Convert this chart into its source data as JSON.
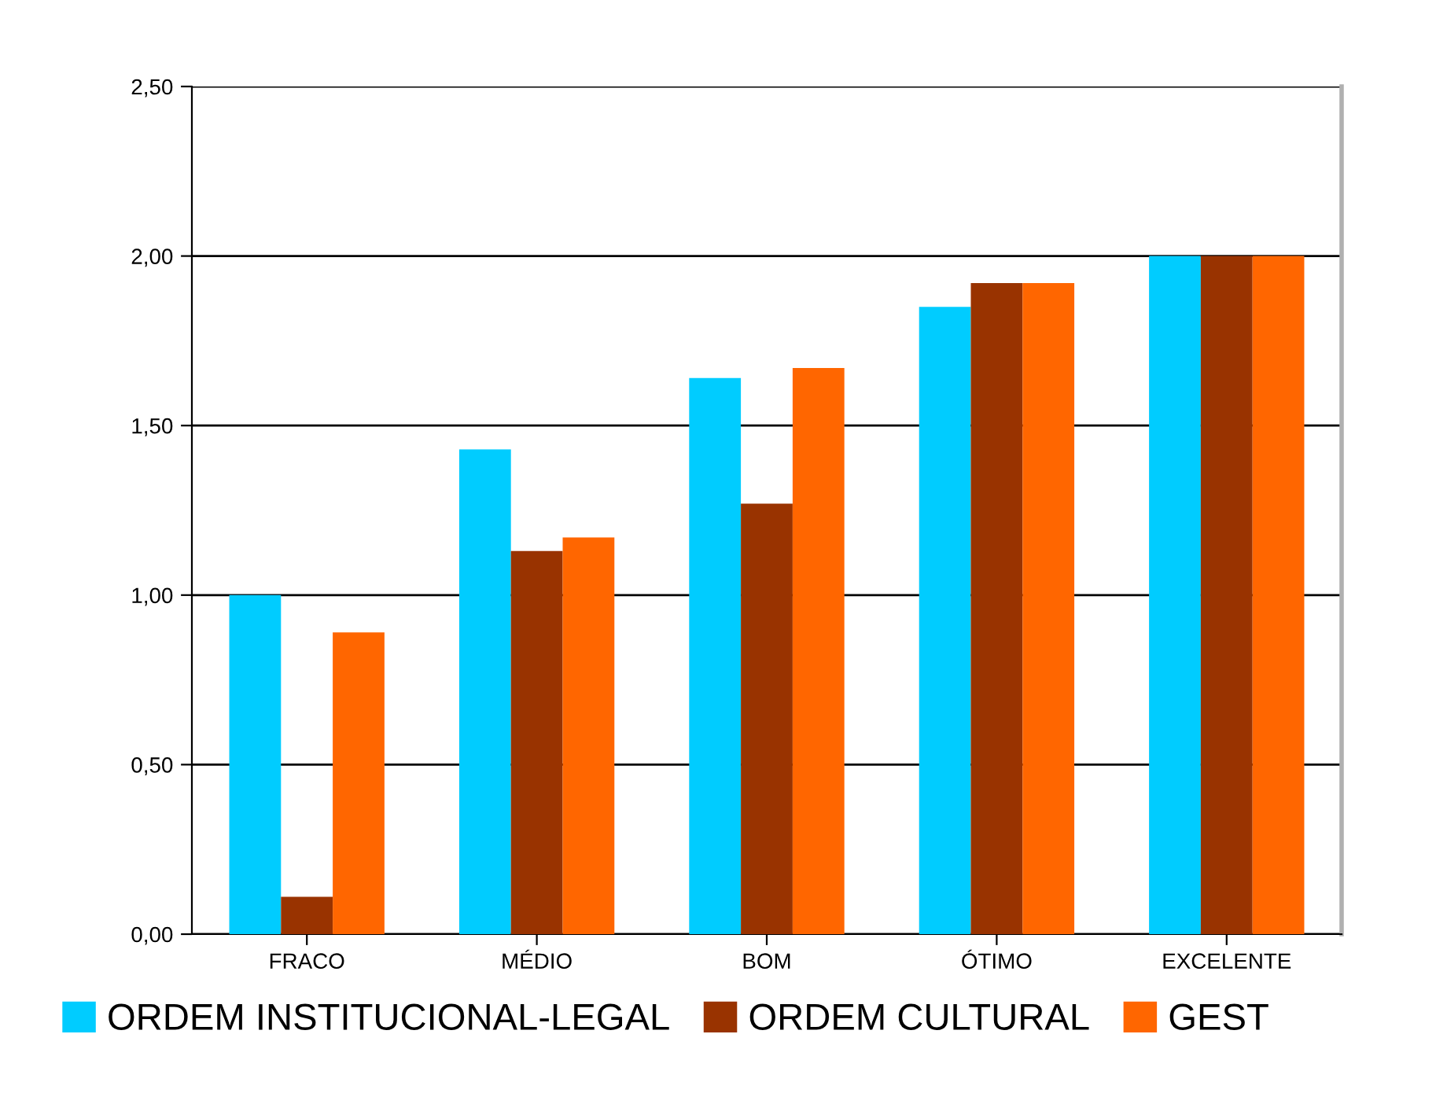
{
  "chart_data": {
    "type": "bar",
    "categories": [
      "FRACO",
      "MÉDIO",
      "BOM",
      "ÓTIMO",
      "EXCELENTE"
    ],
    "series": [
      {
        "name": "ORDEM INSTITUCIONAL-LEGAL",
        "color": "#00ccff",
        "values": [
          1.0,
          1.43,
          1.64,
          1.85,
          2.0
        ]
      },
      {
        "name": "ORDEM CULTURAL",
        "color": "#993300",
        "values": [
          0.11,
          1.13,
          1.27,
          1.92,
          2.0
        ]
      },
      {
        "name": "GEST",
        "color": "#ff6600",
        "values": [
          0.89,
          1.17,
          1.67,
          1.92,
          2.0
        ]
      }
    ],
    "ylim": [
      0,
      2.5
    ],
    "yticks": [
      {
        "value": 0,
        "label": "0,00"
      },
      {
        "value": 0.5,
        "label": "0,50"
      },
      {
        "value": 1.0,
        "label": "1,00"
      },
      {
        "value": 1.5,
        "label": "1,50"
      },
      {
        "value": 2.0,
        "label": "2,00"
      },
      {
        "value": 2.5,
        "label": "2,50"
      }
    ],
    "grid": "y",
    "legend": "bottom"
  }
}
